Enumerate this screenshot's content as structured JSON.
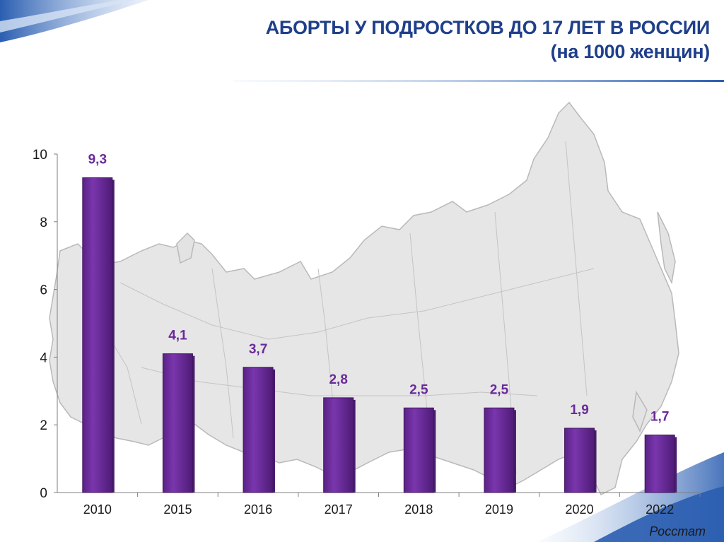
{
  "header": {
    "title": "АБОРТЫ У ПОДРОСТКОВ ДО 17 ЛЕТ В РОССИИ",
    "subtitle": "(на 1000 женщин)"
  },
  "source": "Росстат",
  "colors": {
    "bar": "#7030a0",
    "bar_dark": "#4b1d6e",
    "label": "#6a2a9a",
    "title": "#1f3f8a",
    "map_fill": "#e6e6e6",
    "map_stroke": "#b9b9b9",
    "wave": "#2e5fb0"
  },
  "chart_data": {
    "type": "bar",
    "categories": [
      "2010",
      "2015",
      "2016",
      "2017",
      "2018",
      "2019",
      "2020",
      "2022"
    ],
    "values": [
      9.3,
      4.1,
      3.7,
      2.8,
      2.5,
      2.5,
      1.9,
      1.7
    ],
    "value_labels": [
      "9,3",
      "4,1",
      "3,7",
      "2,8",
      "2,5",
      "2,5",
      "1,9",
      "1,7"
    ],
    "ylim": [
      0,
      10
    ],
    "yticks": [
      0,
      2,
      4,
      6,
      8,
      10
    ],
    "title": "",
    "xlabel": "",
    "ylabel": "",
    "grid": false,
    "legend": "none",
    "background": "map-of-russia"
  }
}
